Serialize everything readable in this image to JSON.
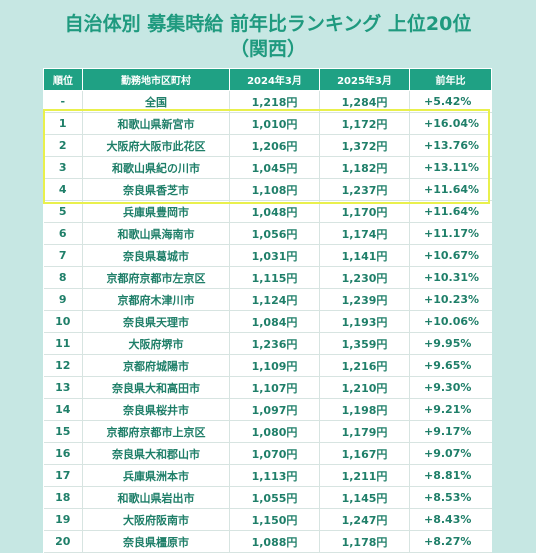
{
  "title": {
    "line1": "自治体別 募集時給 前年比ランキング 上位20位",
    "line2": "（関西）"
  },
  "table": {
    "headers": [
      "順位",
      "勤務地市区町村",
      "2024年3月",
      "2025年3月",
      "前年比"
    ],
    "rows": [
      [
        "-",
        "全国",
        "1,218円",
        "1,284円",
        "+5.42%"
      ],
      [
        "1",
        "和歌山県新宮市",
        "1,010円",
        "1,172円",
        "+16.04%"
      ],
      [
        "2",
        "大阪府大阪市此花区",
        "1,206円",
        "1,372円",
        "+13.76%"
      ],
      [
        "3",
        "和歌山県紀の川市",
        "1,045円",
        "1,182円",
        "+13.11%"
      ],
      [
        "4",
        "奈良県香芝市",
        "1,108円",
        "1,237円",
        "+11.64%"
      ],
      [
        "5",
        "兵庫県豊岡市",
        "1,048円",
        "1,170円",
        "+11.64%"
      ],
      [
        "6",
        "和歌山県海南市",
        "1,056円",
        "1,174円",
        "+11.17%"
      ],
      [
        "7",
        "奈良県葛城市",
        "1,031円",
        "1,141円",
        "+10.67%"
      ],
      [
        "8",
        "京都府京都市左京区",
        "1,115円",
        "1,230円",
        "+10.31%"
      ],
      [
        "9",
        "京都府木津川市",
        "1,124円",
        "1,239円",
        "+10.23%"
      ],
      [
        "10",
        "奈良県天理市",
        "1,084円",
        "1,193円",
        "+10.06%"
      ],
      [
        "11",
        "大阪府堺市",
        "1,236円",
        "1,359円",
        "+9.95%"
      ],
      [
        "12",
        "京都府城陽市",
        "1,109円",
        "1,216円",
        "+9.65%"
      ],
      [
        "13",
        "奈良県大和高田市",
        "1,107円",
        "1,210円",
        "+9.30%"
      ],
      [
        "14",
        "奈良県桜井市",
        "1,097円",
        "1,198円",
        "+9.21%"
      ],
      [
        "15",
        "京都府京都市上京区",
        "1,080円",
        "1,179円",
        "+9.17%"
      ],
      [
        "16",
        "奈良県大和郡山市",
        "1,070円",
        "1,167円",
        "+9.07%"
      ],
      [
        "17",
        "兵庫県洲本市",
        "1,113円",
        "1,211円",
        "+8.81%"
      ],
      [
        "18",
        "和歌山県岩出市",
        "1,055円",
        "1,145円",
        "+8.53%"
      ],
      [
        "19",
        "大阪府阪南市",
        "1,150円",
        "1,247円",
        "+8.43%"
      ],
      [
        "20",
        "奈良県橿原市",
        "1,088円",
        "1,178円",
        "+8.27%"
      ]
    ]
  },
  "colors": {
    "background": "#c6e7e3",
    "header": "#1fa184",
    "text": "#1f7f69",
    "title": "#1f9a7f",
    "highlight": "#e9f04c"
  }
}
